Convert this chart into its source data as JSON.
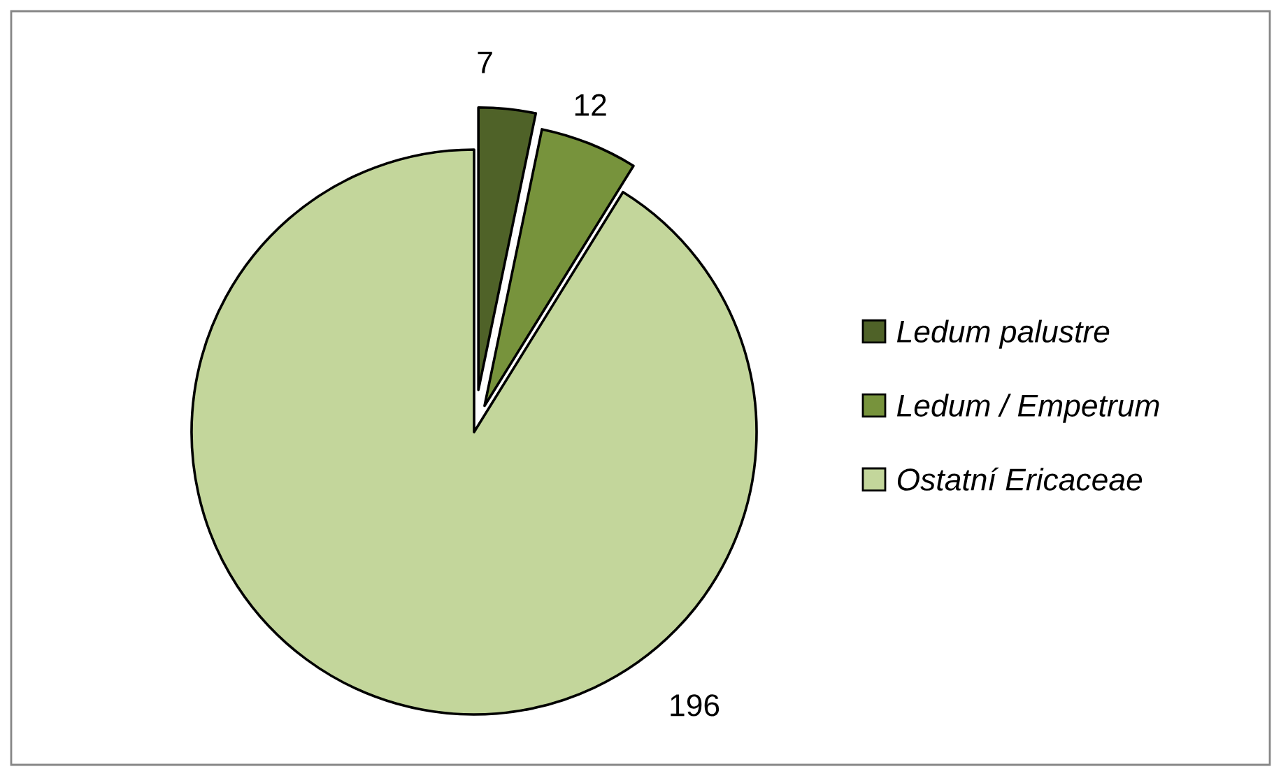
{
  "chart_data": {
    "type": "pie",
    "categories": [
      "Ledum palustre",
      "Ledum / Empetrum",
      "Ostatní Ericaceae"
    ],
    "values": [
      7,
      12,
      196
    ],
    "colors": [
      "#4f6228",
      "#77933c",
      "#c3d69b"
    ],
    "data_labels": true,
    "legend": "right"
  }
}
